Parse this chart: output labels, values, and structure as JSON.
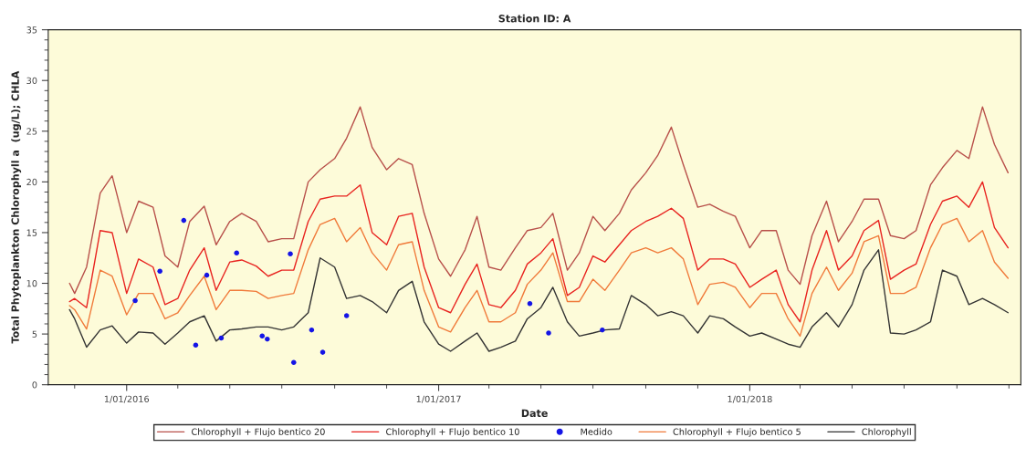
{
  "chart_data": {
    "type": "line",
    "title": "Station ID: A",
    "xlabel": "Date",
    "ylabel": "Total Phytoplankton Chlorophyll a  (ug/L); CHLA",
    "x": [
      "2015-10-26",
      "2015-11-01",
      "2015-11-15",
      "2015-12-01",
      "2015-12-15",
      "2016-01-01",
      "2016-01-15",
      "2016-02-01",
      "2016-02-15",
      "2016-03-01",
      "2016-03-15",
      "2016-04-01",
      "2016-04-15",
      "2016-05-01",
      "2016-05-15",
      "2016-06-01",
      "2016-06-15",
      "2016-07-01",
      "2016-07-15",
      "2016-08-01",
      "2016-08-15",
      "2016-09-01",
      "2016-09-15",
      "2016-10-01",
      "2016-10-15",
      "2016-11-01",
      "2016-11-15",
      "2016-12-01",
      "2016-12-15",
      "2017-01-01",
      "2017-01-15",
      "2017-02-01",
      "2017-02-15",
      "2017-03-01",
      "2017-03-15",
      "2017-04-01",
      "2017-04-15",
      "2017-05-01",
      "2017-05-15",
      "2017-06-01",
      "2017-06-15",
      "2017-07-01",
      "2017-07-15",
      "2017-08-01",
      "2017-08-15",
      "2017-09-01",
      "2017-09-15",
      "2017-10-01",
      "2017-10-15",
      "2017-11-01",
      "2017-11-15",
      "2017-12-01",
      "2017-12-15",
      "2018-01-01",
      "2018-01-15",
      "2018-02-01",
      "2018-02-15",
      "2018-03-01",
      "2018-03-15",
      "2018-04-01",
      "2018-04-15",
      "2018-05-01",
      "2018-05-15",
      "2018-06-01",
      "2018-06-15",
      "2018-07-01",
      "2018-07-15",
      "2018-08-01",
      "2018-08-15",
      "2018-09-01",
      "2018-09-15",
      "2018-10-01",
      "2018-10-15",
      "2018-10-31"
    ],
    "series": [
      {
        "name": "Chlorophyll + Flujo bentico 20",
        "color": "#b8504a",
        "values": [
          10.0,
          9.0,
          11.6,
          18.9,
          20.6,
          15.0,
          18.1,
          17.5,
          12.7,
          11.6,
          16.1,
          17.6,
          13.8,
          16.1,
          16.9,
          16.1,
          14.1,
          14.4,
          14.4,
          20.0,
          21.2,
          22.3,
          24.3,
          27.4,
          23.4,
          21.2,
          22.3,
          21.7,
          16.9,
          12.4,
          10.7,
          13.3,
          16.6,
          11.6,
          11.3,
          13.5,
          15.2,
          15.5,
          16.9,
          11.3,
          13.0,
          16.6,
          15.2,
          16.9,
          19.2,
          20.9,
          22.6,
          25.4,
          21.7,
          17.5,
          17.8,
          17.1,
          16.6,
          13.5,
          15.2,
          15.2,
          11.3,
          9.9,
          14.7,
          18.1,
          14.1,
          16.1,
          18.3,
          18.3,
          14.7,
          14.4,
          15.2,
          19.7,
          21.4,
          23.1,
          22.3,
          27.4,
          23.7,
          20.9
        ]
      },
      {
        "name": "Chlorophyll + Flujo bentico 10",
        "color": "#e8231f",
        "values": [
          8.2,
          8.5,
          7.6,
          15.2,
          15.0,
          9.0,
          12.4,
          11.6,
          7.9,
          8.5,
          11.3,
          13.5,
          9.3,
          12.1,
          12.3,
          11.7,
          10.7,
          11.3,
          11.3,
          16.1,
          18.3,
          18.6,
          18.6,
          19.7,
          15.0,
          13.8,
          16.6,
          16.9,
          11.6,
          7.6,
          7.1,
          9.9,
          11.9,
          7.9,
          7.6,
          9.3,
          11.9,
          13.0,
          14.4,
          8.8,
          9.6,
          12.7,
          12.1,
          13.8,
          15.2,
          16.1,
          16.6,
          17.4,
          16.4,
          11.3,
          12.4,
          12.4,
          11.9,
          9.6,
          10.4,
          11.3,
          7.9,
          6.2,
          11.3,
          15.2,
          11.3,
          12.7,
          15.2,
          16.2,
          10.4,
          11.3,
          11.9,
          15.8,
          18.1,
          18.6,
          17.5,
          20.0,
          15.5,
          13.5
        ]
      },
      {
        "name": "Medido",
        "type": "scatter",
        "color": "#1414e6",
        "marker": "circle",
        "x": [
          "2016-01-11",
          "2016-02-09",
          "2016-03-08",
          "2016-03-22",
          "2016-04-04",
          "2016-04-21",
          "2016-05-09",
          "2016-06-08",
          "2016-06-14",
          "2016-07-11",
          "2016-07-15",
          "2016-08-05",
          "2016-08-18",
          "2016-09-15",
          "2017-04-18",
          "2017-05-10",
          "2017-07-12"
        ],
        "values": [
          8.3,
          11.2,
          16.2,
          3.9,
          10.8,
          4.6,
          13.0,
          4.8,
          4.5,
          12.9,
          2.2,
          5.4,
          3.2,
          6.8,
          8.0,
          5.1,
          5.4
        ]
      },
      {
        "name": "Chlorophyll + Flujo bentico 5",
        "color": "#f07a3a",
        "values": [
          7.8,
          7.4,
          5.5,
          11.3,
          10.7,
          6.9,
          9.0,
          9.0,
          6.5,
          7.1,
          8.8,
          10.7,
          7.4,
          9.3,
          9.3,
          9.2,
          8.5,
          8.8,
          9.0,
          13.3,
          15.8,
          16.4,
          14.1,
          15.5,
          13.0,
          11.3,
          13.8,
          14.1,
          9.3,
          5.7,
          5.2,
          7.6,
          9.3,
          6.2,
          6.2,
          7.1,
          9.9,
          11.3,
          13.0,
          8.2,
          8.2,
          10.4,
          9.3,
          11.3,
          13.0,
          13.5,
          13.0,
          13.5,
          12.4,
          7.9,
          9.9,
          10.1,
          9.6,
          7.6,
          9.0,
          9.0,
          6.5,
          4.8,
          9.0,
          11.6,
          9.3,
          11.0,
          14.1,
          14.7,
          9.0,
          9.0,
          9.6,
          13.5,
          15.8,
          16.4,
          14.1,
          15.2,
          12.1,
          10.5
        ]
      },
      {
        "name": "Chlorophyll",
        "color": "#333333",
        "values": [
          7.4,
          6.5,
          3.7,
          5.4,
          5.8,
          4.1,
          5.2,
          5.1,
          4.0,
          5.1,
          6.2,
          6.8,
          4.3,
          5.4,
          5.5,
          5.7,
          5.7,
          5.4,
          5.7,
          7.1,
          12.5,
          11.6,
          8.5,
          8.8,
          8.2,
          7.1,
          9.3,
          10.2,
          6.2,
          4.0,
          3.3,
          4.3,
          5.1,
          3.3,
          3.7,
          4.3,
          6.5,
          7.6,
          9.6,
          6.2,
          4.8,
          5.1,
          5.4,
          5.5,
          8.8,
          7.9,
          6.8,
          7.2,
          6.8,
          5.1,
          6.8,
          6.5,
          5.7,
          4.8,
          5.1,
          4.5,
          4.0,
          3.7,
          5.7,
          7.1,
          5.7,
          7.9,
          11.3,
          13.3,
          5.1,
          5.0,
          5.4,
          6.2,
          11.3,
          10.7,
          7.9,
          8.5,
          7.9,
          7.1
        ]
      }
    ],
    "xlim": [
      "2015-10-01",
      "2018-11-15"
    ],
    "xticks": [
      {
        "value": "2015-11-01",
        "label": null
      },
      {
        "value": "2016-01-01",
        "label": "1/01/2016"
      },
      {
        "value": "2016-03-01",
        "label": null
      },
      {
        "value": "2016-05-01",
        "label": null
      },
      {
        "value": "2016-07-01",
        "label": null
      },
      {
        "value": "2016-09-01",
        "label": null
      },
      {
        "value": "2016-11-01",
        "label": null
      },
      {
        "value": "2017-01-01",
        "label": "1/01/2017"
      },
      {
        "value": "2017-03-01",
        "label": null
      },
      {
        "value": "2017-05-01",
        "label": null
      },
      {
        "value": "2017-07-01",
        "label": null
      },
      {
        "value": "2017-09-01",
        "label": null
      },
      {
        "value": "2017-11-01",
        "label": null
      },
      {
        "value": "2018-01-01",
        "label": "1/01/2018"
      },
      {
        "value": "2018-03-01",
        "label": null
      },
      {
        "value": "2018-05-01",
        "label": null
      },
      {
        "value": "2018-07-01",
        "label": null
      },
      {
        "value": "2018-09-01",
        "label": null
      },
      {
        "value": "2018-11-01",
        "label": null
      }
    ],
    "ylim": [
      0,
      35
    ],
    "yticks": [
      0,
      {
        "value": 1,
        "label": null
      },
      {
        "value": 2,
        "label": null
      },
      {
        "value": 3,
        "label": null
      },
      {
        "value": 4,
        "label": null
      },
      5,
      {
        "value": 6,
        "label": null
      },
      {
        "value": 7,
        "label": null
      },
      {
        "value": 8,
        "label": null
      },
      {
        "value": 9,
        "label": null
      },
      10,
      {
        "value": 11,
        "label": null
      },
      {
        "value": 12,
        "label": null
      },
      {
        "value": 13,
        "label": null
      },
      {
        "value": 14,
        "label": null
      },
      15,
      {
        "value": 16,
        "label": null
      },
      {
        "value": 17,
        "label": null
      },
      {
        "value": 18,
        "label": null
      },
      {
        "value": 19,
        "label": null
      },
      20,
      {
        "value": 21,
        "label": null
      },
      {
        "value": 22,
        "label": null
      },
      {
        "value": 23,
        "label": null
      },
      {
        "value": 24,
        "label": null
      },
      25,
      {
        "value": 26,
        "label": null
      },
      {
        "value": 27,
        "label": null
      },
      {
        "value": 28,
        "label": null
      },
      {
        "value": 29,
        "label": null
      },
      30,
      {
        "value": 31,
        "label": null
      },
      {
        "value": 32,
        "label": null
      },
      {
        "value": 33,
        "label": null
      },
      {
        "value": 34,
        "label": null
      },
      35
    ],
    "grid": false,
    "legend": "bottom",
    "line_style": "solid"
  }
}
